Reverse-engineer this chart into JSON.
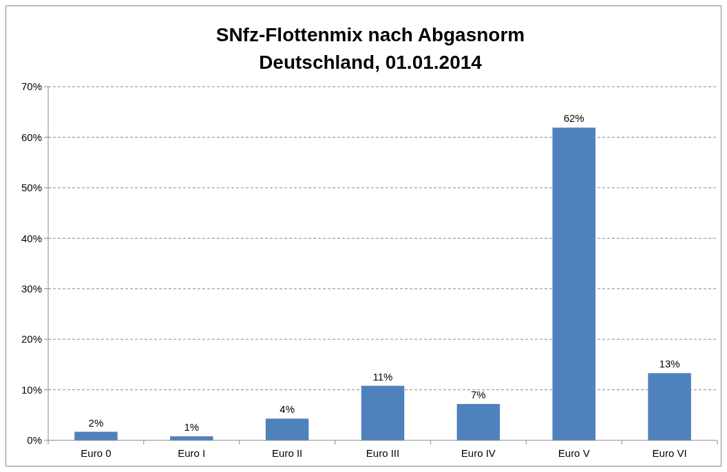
{
  "chart_data": {
    "type": "bar",
    "title": "SNfz-Flottenmix nach Abgasnorm\nDeutschland, 01.01.2014",
    "categories": [
      "Euro 0",
      "Euro I",
      "Euro II",
      "Euro III",
      "Euro IV",
      "Euro V",
      "Euro VI"
    ],
    "values": [
      1.7,
      0.8,
      4.3,
      10.8,
      7.2,
      61.9,
      13.3
    ],
    "value_labels": [
      "2%",
      "1%",
      "4%",
      "11%",
      "7%",
      "62%",
      "13%"
    ],
    "color": "#4f81bd",
    "ylim": [
      0,
      70
    ],
    "yticks": [
      {
        "value": 0,
        "label": "0%"
      },
      {
        "value": 10,
        "label": "10%"
      },
      {
        "value": 20,
        "label": "20%"
      },
      {
        "value": 30,
        "label": "30%"
      },
      {
        "value": 40,
        "label": "40%"
      },
      {
        "value": 50,
        "label": "50%"
      },
      {
        "value": 60,
        "label": "60%"
      },
      {
        "value": 70,
        "label": "70%"
      }
    ],
    "grid": "y"
  }
}
